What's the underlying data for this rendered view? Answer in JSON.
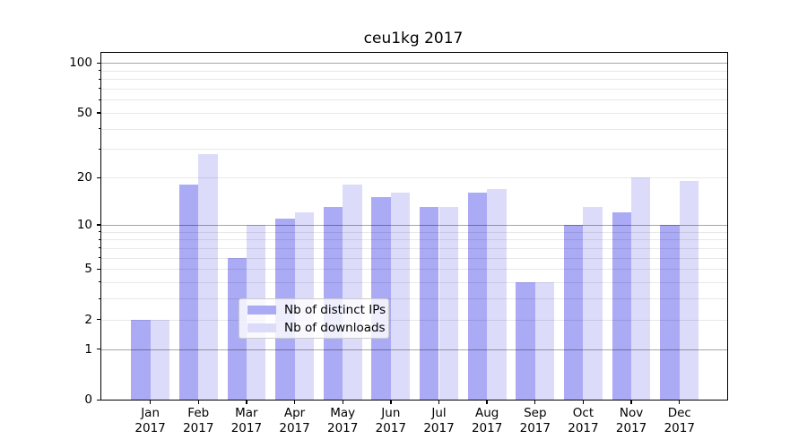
{
  "chart_data": {
    "type": "bar",
    "title": "ceu1kg 2017",
    "categories": [
      "Jan 2017",
      "Feb 2017",
      "Mar 2017",
      "Apr 2017",
      "May 2017",
      "Jun 2017",
      "Jul 2017",
      "Aug 2017",
      "Sep 2017",
      "Oct 2017",
      "Nov 2017",
      "Dec 2017"
    ],
    "series": [
      {
        "name": "Nb of distinct IPs",
        "color": "#aaaaf5",
        "values": [
          2,
          18,
          6,
          11,
          13,
          15,
          13,
          16,
          4,
          10,
          12,
          10
        ]
      },
      {
        "name": "Nb of downloads",
        "color": "#dcdcfa",
        "values": [
          2,
          28,
          10,
          12,
          18,
          16,
          13,
          17,
          4,
          13,
          20,
          19
        ]
      }
    ],
    "yscale": "log1p",
    "ylim": [
      0,
      120
    ],
    "y_ticks": [
      0,
      1,
      2,
      5,
      10,
      20,
      50,
      100
    ],
    "y_tick_labels": [
      "0",
      "1",
      "2",
      "5",
      "10",
      "20",
      "50",
      "100"
    ],
    "y_major_gridlines": [
      1,
      10,
      100
    ],
    "y_minor_gridlines": [
      2,
      3,
      4,
      5,
      6,
      7,
      8,
      9,
      20,
      30,
      40,
      50,
      60,
      70,
      80,
      90
    ],
    "y_minor_ticks": [
      3,
      4,
      6,
      7,
      8,
      9,
      30,
      40,
      60,
      70,
      80,
      90
    ],
    "grid": true,
    "legend_position": "lower center",
    "xlabel": "",
    "ylabel": ""
  }
}
